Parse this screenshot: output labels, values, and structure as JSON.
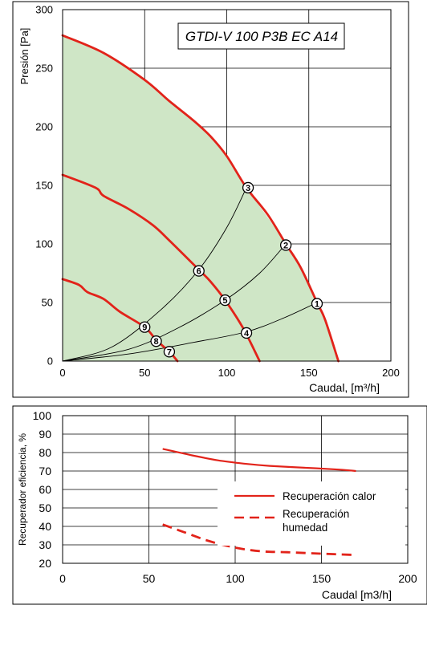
{
  "chart_data": [
    {
      "type": "line",
      "title": "GTDI-V 100 P3B EC A14",
      "xlabel": "Caudal, [m³/h]",
      "ylabel": "Presión [Pa]",
      "xlim": [
        0,
        200
      ],
      "ylim": [
        0,
        300
      ],
      "x_ticks": [
        "0",
        "50",
        "100",
        "150",
        "200"
      ],
      "y_ticks": [
        "0",
        "50",
        "100",
        "150",
        "200",
        "250",
        "300"
      ],
      "grid": true,
      "operating_area": {
        "color": "#cfe6c6",
        "boundary": [
          [
            0,
            278
          ],
          [
            25,
            263
          ],
          [
            50,
            240
          ],
          [
            80,
            205
          ],
          [
            100,
            175
          ],
          [
            112,
            148
          ],
          [
            136,
            100
          ],
          [
            155,
            50
          ],
          [
            168,
            0
          ]
        ]
      },
      "series": [
        {
          "color": "#e2231a",
          "values": [
            [
              0,
              278
            ],
            [
              25,
              263
            ],
            [
              50,
              240
            ],
            [
              65,
              222
            ],
            [
              80,
              205
            ],
            [
              90,
              192
            ],
            [
              100,
              175
            ],
            [
              112,
              148
            ],
            [
              125,
              125
            ],
            [
              136,
              100
            ],
            [
              145,
              80
            ],
            [
              155,
              50
            ],
            [
              160,
              35
            ],
            [
              168,
              0
            ]
          ]
        },
        {
          "color": "#e2231a",
          "values": [
            [
              0,
              159
            ],
            [
              20,
              148
            ],
            [
              25,
              141
            ],
            [
              40,
              130
            ],
            [
              55,
              116
            ],
            [
              65,
              103
            ],
            [
              83,
              78
            ],
            [
              90,
              68
            ],
            [
              99,
              52
            ],
            [
              110,
              28
            ],
            [
              120,
              0
            ]
          ]
        },
        {
          "color": "#e2231a",
          "values": [
            [
              0,
              70
            ],
            [
              10,
              65
            ],
            [
              15,
              59
            ],
            [
              25,
              53
            ],
            [
              35,
              42
            ],
            [
              50,
              29
            ],
            [
              57,
              18
            ],
            [
              65,
              8
            ],
            [
              70,
              0
            ]
          ]
        }
      ],
      "system_curves": [
        {
          "color": "#000000",
          "values": [
            [
              0,
              0
            ],
            [
              30,
              12
            ],
            [
              60,
              44
            ],
            [
              83,
              78
            ],
            [
              100,
              114
            ],
            [
              112,
              148
            ]
          ]
        },
        {
          "color": "#000000",
          "values": [
            [
              0,
              0
            ],
            [
              40,
              10
            ],
            [
              70,
              28
            ],
            [
              99,
              52
            ],
            [
              120,
              75
            ],
            [
              136,
              100
            ]
          ]
        },
        {
          "color": "#000000",
          "values": [
            [
              0,
              0
            ],
            [
              40,
              6
            ],
            [
              80,
              16
            ],
            [
              112,
              25
            ],
            [
              135,
              37
            ],
            [
              155,
              50
            ]
          ]
        }
      ],
      "markers": [
        {
          "label": "1",
          "x": 155,
          "y": 49
        },
        {
          "label": "2",
          "x": 136,
          "y": 99
        },
        {
          "label": "3",
          "x": 113,
          "y": 148
        },
        {
          "label": "4",
          "x": 112,
          "y": 24
        },
        {
          "label": "5",
          "x": 99,
          "y": 52
        },
        {
          "label": "6",
          "x": 83,
          "y": 77
        },
        {
          "label": "7",
          "x": 65,
          "y": 8
        },
        {
          "label": "8",
          "x": 57,
          "y": 17
        },
        {
          "label": "9",
          "x": 50,
          "y": 29
        }
      ]
    },
    {
      "type": "line",
      "xlabel": "Caudal [m3/h]",
      "ylabel": "Recuperador eficiencia, %",
      "xlim": [
        0,
        200
      ],
      "ylim": [
        20,
        100
      ],
      "x_ticks": [
        "0",
        "50",
        "100",
        "150",
        "200"
      ],
      "y_ticks": [
        "20",
        "30",
        "40",
        "50",
        "60",
        "70",
        "80",
        "90",
        "100"
      ],
      "grid": true,
      "legend": "center-right",
      "series": [
        {
          "name": "Recuperación calor",
          "style": "solid",
          "color": "#e2231a",
          "values": [
            [
              58,
              82
            ],
            [
              75,
              78.5
            ],
            [
              90,
              75.8
            ],
            [
              105,
              74
            ],
            [
              120,
              72.8
            ],
            [
              140,
              71.8
            ],
            [
              160,
              70.8
            ],
            [
              170,
              70
            ]
          ]
        },
        {
          "name": "Recuperación humedad",
          "style": "dashed",
          "color": "#e2231a",
          "values": [
            [
              58,
              41
            ],
            [
              70,
              37
            ],
            [
              85,
              32
            ],
            [
              100,
              28.5
            ],
            [
              115,
              26.5
            ],
            [
              130,
              26
            ],
            [
              150,
              25.2
            ],
            [
              170,
              24.5
            ]
          ]
        }
      ]
    }
  ]
}
